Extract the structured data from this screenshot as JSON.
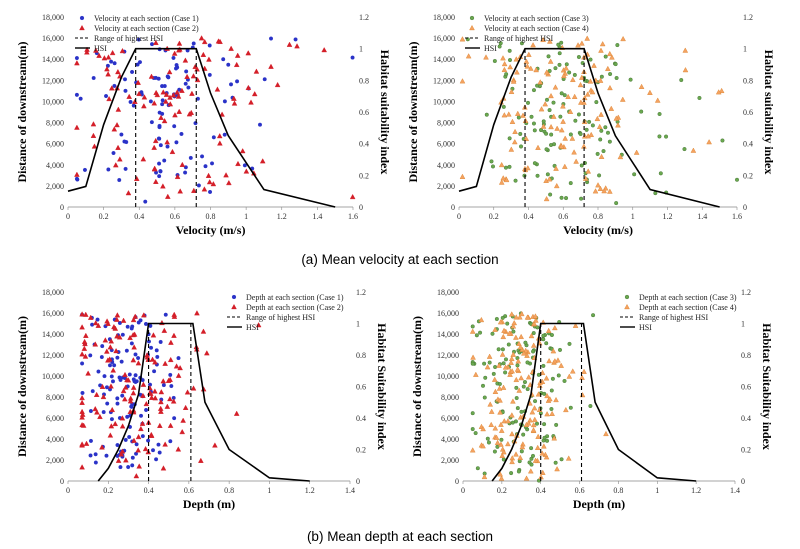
{
  "figure_captions": {
    "a": "(a)  Mean velocity at each section",
    "b": "(b)  Mean depth at each section"
  },
  "colors": {
    "case1": "#2a32c8",
    "case2": "#d41e28",
    "case3": "#6aa84f",
    "case4": "#f4a261",
    "case4_edge": "#d9822b",
    "hsi": "#000000"
  },
  "chart_data": [
    {
      "id": "velocity-case-1-2",
      "type": "scatter",
      "xlabel": "Velocity (m/s)",
      "ylabel": "Distance of downstream(m)",
      "y2label": "Habitat suitability index",
      "xlim": [
        0,
        1.6
      ],
      "ylim": [
        0,
        18000
      ],
      "y2lim": [
        0,
        1.2
      ],
      "xticks": [
        "0",
        "0.2",
        "0.4",
        "0.6",
        "0.8",
        "1",
        "1.2",
        "1.4",
        "1.6"
      ],
      "yticks": [
        "0",
        "2,000",
        "4,000",
        "6,000",
        "8,000",
        "10,000",
        "12,000",
        "14,000",
        "16,000",
        "18,000"
      ],
      "y2ticks": [
        "0",
        "0.2",
        "0.4",
        "0.6",
        "0.8",
        "1",
        "1.2"
      ],
      "legend": [
        "Velocity at each section (Case 1)",
        "Velocity at each section (Case 2)",
        "Range of highest HSI",
        "HSI"
      ],
      "legend_position": "top-left",
      "hsi": {
        "x": [
          0,
          0.1,
          0.2,
          0.3,
          0.38,
          0.72,
          0.8,
          0.9,
          1.1,
          1.5
        ],
        "y": [
          0.1,
          0.13,
          0.52,
          0.82,
          1.0,
          1.0,
          0.72,
          0.45,
          0.11,
          0
        ]
      },
      "highest_hsi_range": [
        0.38,
        0.72
      ],
      "series": [
        {
          "name": "Case 1",
          "marker": "circle",
          "x_range": [
            0.05,
            1.6
          ],
          "peak": 0.5,
          "count": 110,
          "seed": 11
        },
        {
          "name": "Case 2",
          "marker": "triangle",
          "x_range": [
            0.05,
            1.6
          ],
          "peak": 0.55,
          "count": 120,
          "seed": 29
        }
      ]
    },
    {
      "id": "velocity-case-3-4",
      "type": "scatter",
      "xlabel": "Velocity (m/s)",
      "ylabel": "Distance of downstream(m)",
      "y2label": "Habitat suitability index",
      "xlim": [
        0,
        1.6
      ],
      "ylim": [
        0,
        18000
      ],
      "y2lim": [
        0,
        1.2
      ],
      "xticks": [
        "0",
        "0.2",
        "0.4",
        "0.6",
        "0.8",
        "1",
        "1.2",
        "1.4",
        "1.6"
      ],
      "yticks": [
        "0",
        "2,000",
        "4,000",
        "6,000",
        "8,000",
        "10,000",
        "12,000",
        "14,000",
        "16,000",
        "18,000"
      ],
      "y2ticks": [
        "0",
        "0.2",
        "0.4",
        "0.6",
        "0.8",
        "1",
        "1.2"
      ],
      "legend": [
        "Velocity at each section (Case 3)",
        "Velocity at each section (Case 4)",
        "Range of highest HSI",
        "HSI"
      ],
      "legend_position": "top-left",
      "hsi": {
        "x": [
          0,
          0.1,
          0.2,
          0.3,
          0.38,
          0.72,
          0.8,
          0.9,
          1.1,
          1.5
        ],
        "y": [
          0.1,
          0.13,
          0.52,
          0.82,
          1.0,
          1.0,
          0.72,
          0.45,
          0.11,
          0
        ]
      },
      "highest_hsi_range": [
        0.38,
        0.72
      ],
      "series": [
        {
          "name": "Case 3",
          "marker": "circle",
          "x_range": [
            0.02,
            1.6
          ],
          "peak": 0.6,
          "count": 130,
          "seed": 47
        },
        {
          "name": "Case 4",
          "marker": "triangle",
          "x_range": [
            0.02,
            1.6
          ],
          "peak": 0.6,
          "count": 140,
          "seed": 83
        }
      ]
    },
    {
      "id": "depth-case-1-2",
      "type": "scatter",
      "xlabel": "Depth (m)",
      "ylabel": "Distance of downstream(m)",
      "y2label": "Habitat Suitability index",
      "xlim": [
        0,
        1.4
      ],
      "ylim": [
        0,
        18000
      ],
      "y2lim": [
        0,
        1.2
      ],
      "xticks": [
        "0",
        "0.2",
        "0.4",
        "0.6",
        "0.8",
        "1",
        "1.2",
        "1.4"
      ],
      "yticks": [
        "0",
        "2,000",
        "4,000",
        "6,000",
        "8,000",
        "10,000",
        "12,000",
        "14,000",
        "16,000",
        "18,000"
      ],
      "y2ticks": [
        "0",
        "0.2",
        "0.4",
        "0.6",
        "0.8",
        "1",
        "1.2"
      ],
      "legend": [
        "Depth at each section (Case 1)",
        "Depth at each section (Case 2)",
        "Range of highest HSI",
        "HSI"
      ],
      "legend_position": "top-right",
      "hsi": {
        "x": [
          0.15,
          0.2,
          0.25,
          0.3,
          0.35,
          0.4,
          0.62,
          0.68,
          0.8,
          1.0,
          1.2
        ],
        "y": [
          0,
          0.08,
          0.2,
          0.35,
          0.55,
          1.0,
          1.0,
          0.5,
          0.2,
          0.02,
          0
        ]
      },
      "highest_hsi_range": [
        0.4,
        0.61
      ],
      "series": [
        {
          "name": "Case 1",
          "marker": "circle",
          "x_range": [
            0.07,
            0.8
          ],
          "peak": 0.28,
          "count": 130,
          "seed": 5
        },
        {
          "name": "Case 2",
          "marker": "triangle",
          "x_range": [
            0.07,
            1.2
          ],
          "peak": 0.3,
          "count": 150,
          "seed": 61
        }
      ]
    },
    {
      "id": "depth-case-3-4",
      "type": "scatter",
      "xlabel": "Depth (m)",
      "ylabel": "Distance of downstream(m)",
      "y2label": "Habitat Suitability index",
      "xlim": [
        0,
        1.4
      ],
      "ylim": [
        0,
        18000
      ],
      "y2lim": [
        0,
        1.2
      ],
      "xticks": [
        "0",
        "0.2",
        "0.4",
        "0.6",
        "0.8",
        "1",
        "1.2",
        "1.4"
      ],
      "yticks": [
        "0",
        "2,000",
        "4,000",
        "6,000",
        "8,000",
        "10,000",
        "12,000",
        "14,000",
        "16,000",
        "18,000"
      ],
      "y2ticks": [
        "0",
        "0.2",
        "0.4",
        "0.6",
        "0.8",
        "1",
        "1.2"
      ],
      "legend": [
        "Depth at each section (Case 3)",
        "Depth at each section (Case 4)",
        "Range of highest HSI",
        "HSI"
      ],
      "legend_position": "top-right",
      "hsi": {
        "x": [
          0.15,
          0.2,
          0.25,
          0.3,
          0.35,
          0.4,
          0.62,
          0.68,
          0.8,
          1.0,
          1.2
        ],
        "y": [
          0,
          0.08,
          0.2,
          0.35,
          0.55,
          1.0,
          1.0,
          0.5,
          0.2,
          0.02,
          0
        ]
      },
      "highest_hsi_range": [
        0.4,
        0.61
      ],
      "series": [
        {
          "name": "Case 3",
          "marker": "circle",
          "x_range": [
            0.05,
            0.8
          ],
          "peak": 0.28,
          "count": 140,
          "seed": 17
        },
        {
          "name": "Case 4",
          "marker": "triangle",
          "x_range": [
            0.05,
            0.8
          ],
          "peak": 0.3,
          "count": 160,
          "seed": 91
        }
      ]
    }
  ]
}
